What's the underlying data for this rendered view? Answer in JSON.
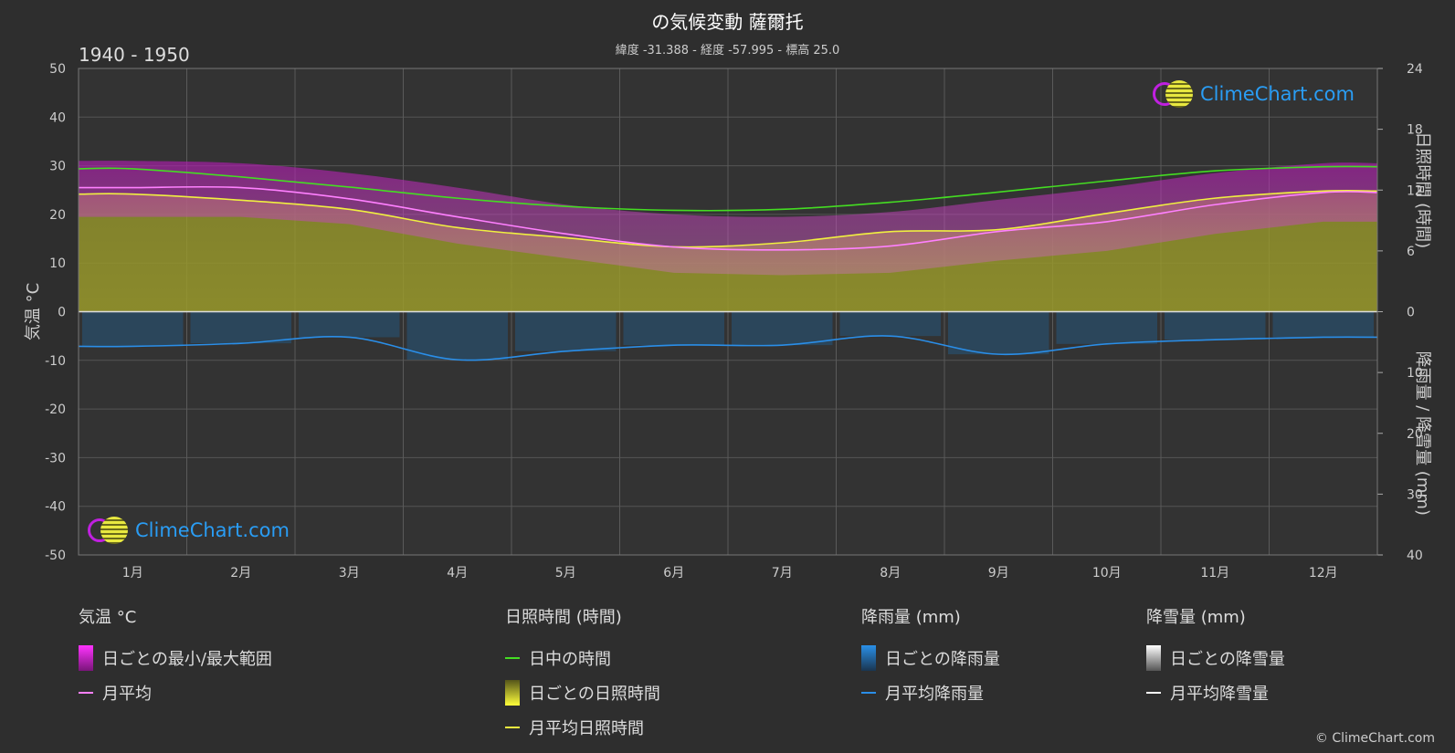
{
  "header": {
    "title": "の気候変動 薩爾托",
    "subtitle": "緯度 -31.388 - 経度 -57.995 - 標高 25.0",
    "period": "1940 - 1950"
  },
  "branding": {
    "name": "ClimeChart.com",
    "copyright": "© ClimeChart.com"
  },
  "axes": {
    "left_label": "気温 °C",
    "right_top_label": "日照時間 (時間)",
    "right_bottom_label": "降雨量 / 降雪量 (mm)",
    "temp_ticks": [
      "50",
      "40",
      "30",
      "20",
      "10",
      "0",
      "-10",
      "-20",
      "-30",
      "-40",
      "-50"
    ],
    "sun_ticks": [
      "24",
      "18",
      "12",
      "6",
      "0"
    ],
    "rain_ticks": [
      "0",
      "10",
      "20",
      "30",
      "40"
    ]
  },
  "legend": {
    "temperature": {
      "heading": "気温 °C",
      "range": "日ごとの最小/最大範囲",
      "mean": "月平均"
    },
    "sunshine": {
      "heading": "日照時間 (時間)",
      "daylight": "日中の時間",
      "daily": "日ごとの日照時間",
      "mean": "月平均日照時間"
    },
    "rain": {
      "heading": "降雨量 (mm)",
      "daily": "日ごとの降雨量",
      "mean": "月平均降雨量"
    },
    "snow": {
      "heading": "降雪量 (mm)",
      "daily": "日ごとの降雪量",
      "mean": "月平均降雪量"
    }
  },
  "colors": {
    "background": "#2e2e2e",
    "temp_range": "#c41fc4",
    "temp_mean": "#ff80ff",
    "daylight": "#44dd22",
    "sunshine": "#b8b82a",
    "sunshine_mean": "#f0f040",
    "rain": "#1d6aa5",
    "rain_mean": "#2a8ee8",
    "snow_mean": "#ffffff"
  },
  "chart_data": {
    "type": "area",
    "months": [
      "1月",
      "2月",
      "3月",
      "4月",
      "5月",
      "6月",
      "7月",
      "8月",
      "9月",
      "10月",
      "11月",
      "12月"
    ],
    "temp_axis": {
      "min": -50,
      "max": 50
    },
    "sun_axis": {
      "min": 0,
      "max": 24
    },
    "rain_axis": {
      "min": 0,
      "max": 40
    },
    "series": [
      {
        "name": "月平均",
        "unit": "°C",
        "values": [
          25.5,
          25.5,
          23.2,
          19.5,
          16.0,
          13.3,
          12.7,
          13.5,
          16.5,
          18.5,
          22.0,
          24.5
        ]
      },
      {
        "name": "日ごとの最小/最大範囲 (max)",
        "unit": "°C",
        "values": [
          31,
          30.5,
          28.5,
          25.5,
          22,
          20,
          19.5,
          20.5,
          23,
          25.5,
          28.5,
          30.5
        ]
      },
      {
        "name": "日ごとの最小/最大範囲 (min)",
        "unit": "°C",
        "values": [
          19.5,
          19.5,
          18,
          14,
          11,
          8,
          7.5,
          8,
          10.5,
          12.5,
          16,
          18.5
        ]
      },
      {
        "name": "日中の時間",
        "unit": "h",
        "values": [
          14.1,
          13.3,
          12.3,
          11.2,
          10.4,
          10.0,
          10.1,
          10.8,
          11.8,
          12.9,
          13.9,
          14.3
        ]
      },
      {
        "name": "月平均日照時間",
        "unit": "h",
        "values": [
          11.6,
          11.0,
          10.1,
          8.3,
          7.3,
          6.4,
          6.8,
          7.9,
          8.1,
          9.7,
          11.2,
          11.9
        ]
      },
      {
        "name": "月平均降雨量",
        "unit": "mm",
        "values": [
          5.7,
          5.2,
          4.2,
          7.9,
          6.5,
          5.5,
          5.5,
          4.0,
          7.0,
          5.3,
          4.6,
          4.2
        ]
      },
      {
        "name": "月平均降雪量",
        "unit": "mm",
        "values": [
          0,
          0,
          0,
          0,
          0,
          0,
          0,
          0,
          0,
          0,
          0,
          0
        ]
      }
    ]
  }
}
